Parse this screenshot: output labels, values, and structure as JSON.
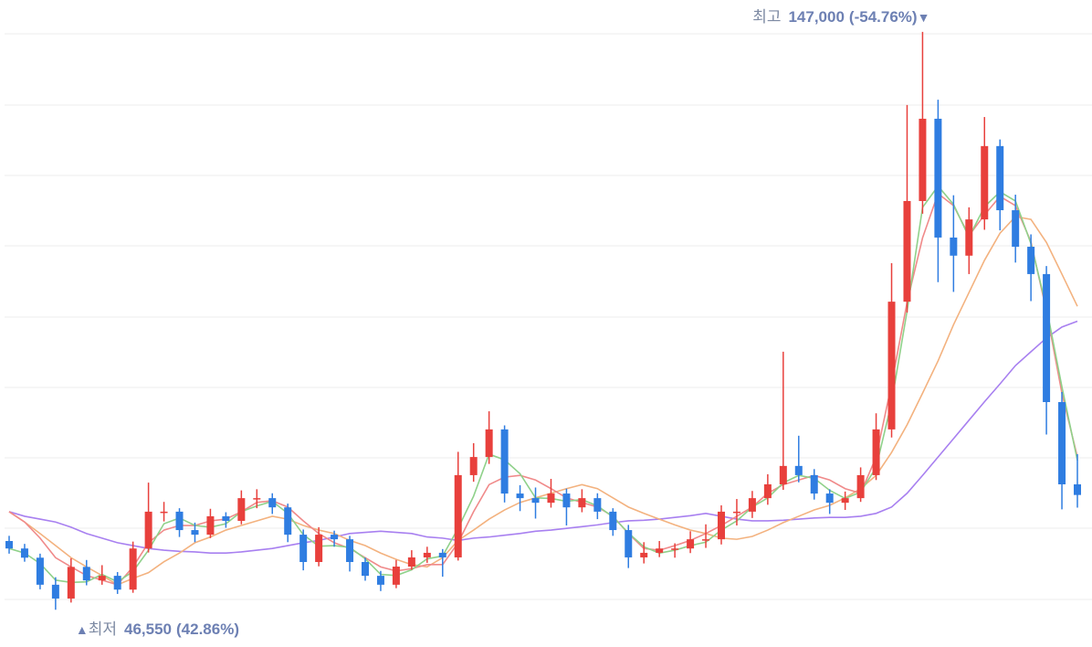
{
  "chart_data": {
    "type": "candlestick",
    "up_color": "#e8403c",
    "down_color": "#2f7de1",
    "ylim": [
      45000,
      150000
    ],
    "open": [
      58500,
      57200,
      55600,
      50900,
      48500,
      54000,
      51650,
      52450,
      50050,
      57200,
      63600,
      63600,
      60400,
      59600,
      62800,
      62000,
      65950,
      65950,
      64350,
      59600,
      54850,
      59600,
      58800,
      54850,
      52450,
      50900,
      54050,
      55650,
      56450,
      55650,
      69950,
      73100,
      77900,
      66750,
      65950,
      65150,
      66750,
      64350,
      65950,
      63600,
      60400,
      55650,
      56450,
      57200,
      57200,
      58800,
      58800,
      63600,
      63600,
      65950,
      68350,
      71550,
      69950,
      66750,
      65150,
      65950,
      69950,
      77900,
      100100,
      117600,
      131900,
      111250,
      108100,
      114400,
      127150,
      116000,
      109650,
      104900,
      82650,
      68350
    ],
    "high": [
      59400,
      58000,
      56300,
      52200,
      55500,
      55200,
      54300,
      53100,
      58400,
      68650,
      65300,
      64200,
      61700,
      64100,
      63500,
      67300,
      67500,
      66800,
      65000,
      60500,
      60900,
      60300,
      59400,
      55600,
      53300,
      55200,
      56900,
      57500,
      57100,
      74000,
      75500,
      81050,
      78600,
      68200,
      67800,
      69300,
      67600,
      67500,
      66800,
      64200,
      61300,
      58300,
      58500,
      58100,
      60200,
      61400,
      64700,
      65800,
      67200,
      70100,
      91400,
      76800,
      71000,
      67500,
      67100,
      71300,
      80700,
      106800,
      134300,
      147000,
      135200,
      118600,
      116500,
      132200,
      128300,
      118700,
      111800,
      106300,
      84400,
      73600
    ],
    "low": [
      56300,
      54900,
      50100,
      46550,
      47800,
      50800,
      50900,
      49300,
      49500,
      56500,
      61900,
      59200,
      58300,
      59000,
      60800,
      61400,
      64200,
      63200,
      58300,
      53400,
      54100,
      57500,
      53200,
      51600,
      49800,
      50300,
      53500,
      54700,
      52300,
      55100,
      68800,
      71900,
      65200,
      63700,
      62400,
      64300,
      61200,
      63500,
      62300,
      59400,
      53800,
      54600,
      55700,
      55600,
      56400,
      57300,
      57900,
      61200,
      62500,
      64800,
      67400,
      68700,
      65700,
      63200,
      63900,
      65300,
      69100,
      76500,
      98200,
      115400,
      103500,
      101800,
      104900,
      112600,
      112500,
      106900,
      100200,
      77000,
      64000,
      64300
    ],
    "close": [
      57200,
      55600,
      50900,
      48500,
      54000,
      51650,
      52450,
      50050,
      57200,
      63600,
      63600,
      60400,
      59600,
      62800,
      62000,
      65950,
      65950,
      64350,
      59600,
      54850,
      59600,
      58800,
      54850,
      52450,
      50900,
      54050,
      55650,
      56450,
      55650,
      69950,
      73100,
      77900,
      66750,
      65950,
      65150,
      66750,
      64350,
      65950,
      63600,
      60400,
      55650,
      56450,
      57200,
      57200,
      58800,
      58800,
      63600,
      63600,
      65950,
      68350,
      71550,
      69950,
      66750,
      65150,
      65950,
      69950,
      77900,
      100100,
      117600,
      131900,
      111250,
      108100,
      114400,
      127150,
      116000,
      109650,
      104900,
      82650,
      68350,
      66500
    ],
    "lines": [
      {
        "color": "#a880f0",
        "values": [
          63600,
          62800,
          62300,
          61800,
          60900,
          59800,
          59000,
          58200,
          57700,
          57200,
          56900,
          56700,
          56600,
          56400,
          56400,
          56600,
          56900,
          57200,
          57700,
          58200,
          58600,
          59200,
          59800,
          60000,
          60200,
          60000,
          59800,
          59200,
          59000,
          58600,
          59000,
          59200,
          59500,
          59800,
          60200,
          60400,
          60700,
          61000,
          61300,
          61700,
          62000,
          62100,
          62300,
          62600,
          62900,
          63300,
          62800,
          62300,
          62000,
          62000,
          62100,
          62300,
          62500,
          62600,
          62600,
          62800,
          63300,
          64400,
          66800,
          69900,
          73100,
          76300,
          79500,
          82700,
          85800,
          89000,
          91400,
          93800,
          95700,
          96700
        ]
      },
      {
        "color": "#f3b27f",
        "values": [
          63600,
          61800,
          59800,
          57700,
          55600,
          54000,
          52500,
          50900,
          52000,
          53000,
          54900,
          56400,
          58200,
          59200,
          60400,
          61200,
          62000,
          62800,
          62300,
          61200,
          60400,
          59800,
          58600,
          57700,
          56400,
          55300,
          54400,
          54000,
          55600,
          58600,
          60400,
          62300,
          63900,
          65200,
          66000,
          66800,
          67600,
          68300,
          67600,
          66000,
          64400,
          63300,
          62300,
          61300,
          60400,
          59800,
          59000,
          58800,
          59300,
          60400,
          61700,
          62800,
          63900,
          64700,
          66000,
          67600,
          69900,
          73900,
          78700,
          84200,
          89800,
          96100,
          101700,
          107300,
          112000,
          114900,
          114400,
          110400,
          104900,
          99300
        ]
      },
      {
        "color": "#f08a8a",
        "values": [
          63600,
          61800,
          59000,
          55600,
          54000,
          52500,
          51700,
          50900,
          54000,
          58200,
          60400,
          61200,
          61200,
          62000,
          62300,
          63600,
          65200,
          65500,
          64400,
          62000,
          59800,
          58200,
          57200,
          55600,
          54000,
          53300,
          53700,
          54400,
          54400,
          58200,
          63600,
          68300,
          69600,
          69900,
          69100,
          67600,
          66000,
          65200,
          64400,
          62800,
          59800,
          57200,
          56900,
          57700,
          58600,
          59800,
          61200,
          62800,
          64400,
          66800,
          68300,
          69100,
          69900,
          69100,
          67600,
          66800,
          73100,
          85800,
          100000,
          111200,
          118900,
          116800,
          111600,
          115200,
          118400,
          116800,
          110500,
          98500,
          84200,
          73100
        ]
      },
      {
        "color": "#8fd18a",
        "values": [
          57200,
          56400,
          54600,
          51700,
          51300,
          51400,
          52700,
          51400,
          53200,
          56900,
          61500,
          62500,
          61200,
          60900,
          61500,
          63600,
          64600,
          65400,
          63300,
          59600,
          57600,
          57700,
          57400,
          55400,
          52700,
          52500,
          53500,
          55400,
          55900,
          60700,
          66300,
          73600,
          72600,
          70200,
          66000,
          65900,
          65400,
          65700,
          64600,
          62700,
          59900,
          57500,
          56400,
          56900,
          57700,
          58300,
          60400,
          62000,
          64400,
          66000,
          68600,
          69900,
          69400,
          67300,
          65900,
          67000,
          71300,
          82600,
          98500,
          116500,
          120200,
          117000,
          111300,
          116600,
          119200,
          117600,
          110200,
          99100,
          85300,
          72500
        ]
      }
    ],
    "max_label": {
      "label": "최고",
      "value": 147000,
      "value_label": "147,000",
      "change": {
        "value": -54.76,
        "label": "(-54.76%)"
      },
      "marker": "▼"
    },
    "min_label": {
      "marker": "▲",
      "label": "최저",
      "value": 46550,
      "value_label": "46,550",
      "change": {
        "value": 42.86,
        "label": "(42.86%)"
      }
    }
  }
}
